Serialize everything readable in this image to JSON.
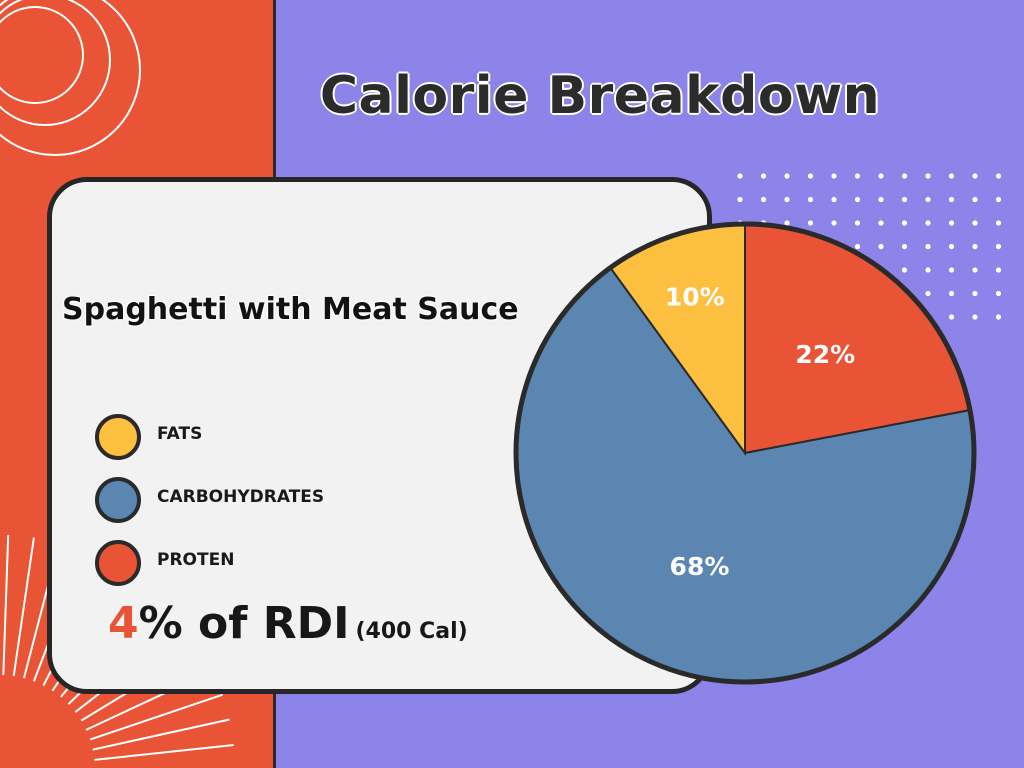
{
  "title": "Calorie Breakdown",
  "dish": "Spaghetti with Meat Sauce",
  "legend": [
    {
      "label": "FATS",
      "color": "#fdbf3f"
    },
    {
      "label": "CARBOHYDRATES",
      "color": "#5a86b1"
    },
    {
      "label": "PROTEN",
      "color": "#e85435"
    }
  ],
  "rdi": {
    "number": "4",
    "text": "% of RDI",
    "calories": "(400 Cal)"
  },
  "chart_data": {
    "type": "pie",
    "categories": [
      "Protein",
      "Carbohydrates",
      "Fats"
    ],
    "values": [
      22,
      68,
      10
    ],
    "value_labels": [
      "22%",
      "68%",
      "10%"
    ],
    "colors": [
      "#e85435",
      "#5a86b1",
      "#fdbf3f"
    ]
  },
  "colors": {
    "background": "#8c84e8",
    "accent": "#e85435",
    "card": "#f2f2f2",
    "outline": "#262626"
  }
}
